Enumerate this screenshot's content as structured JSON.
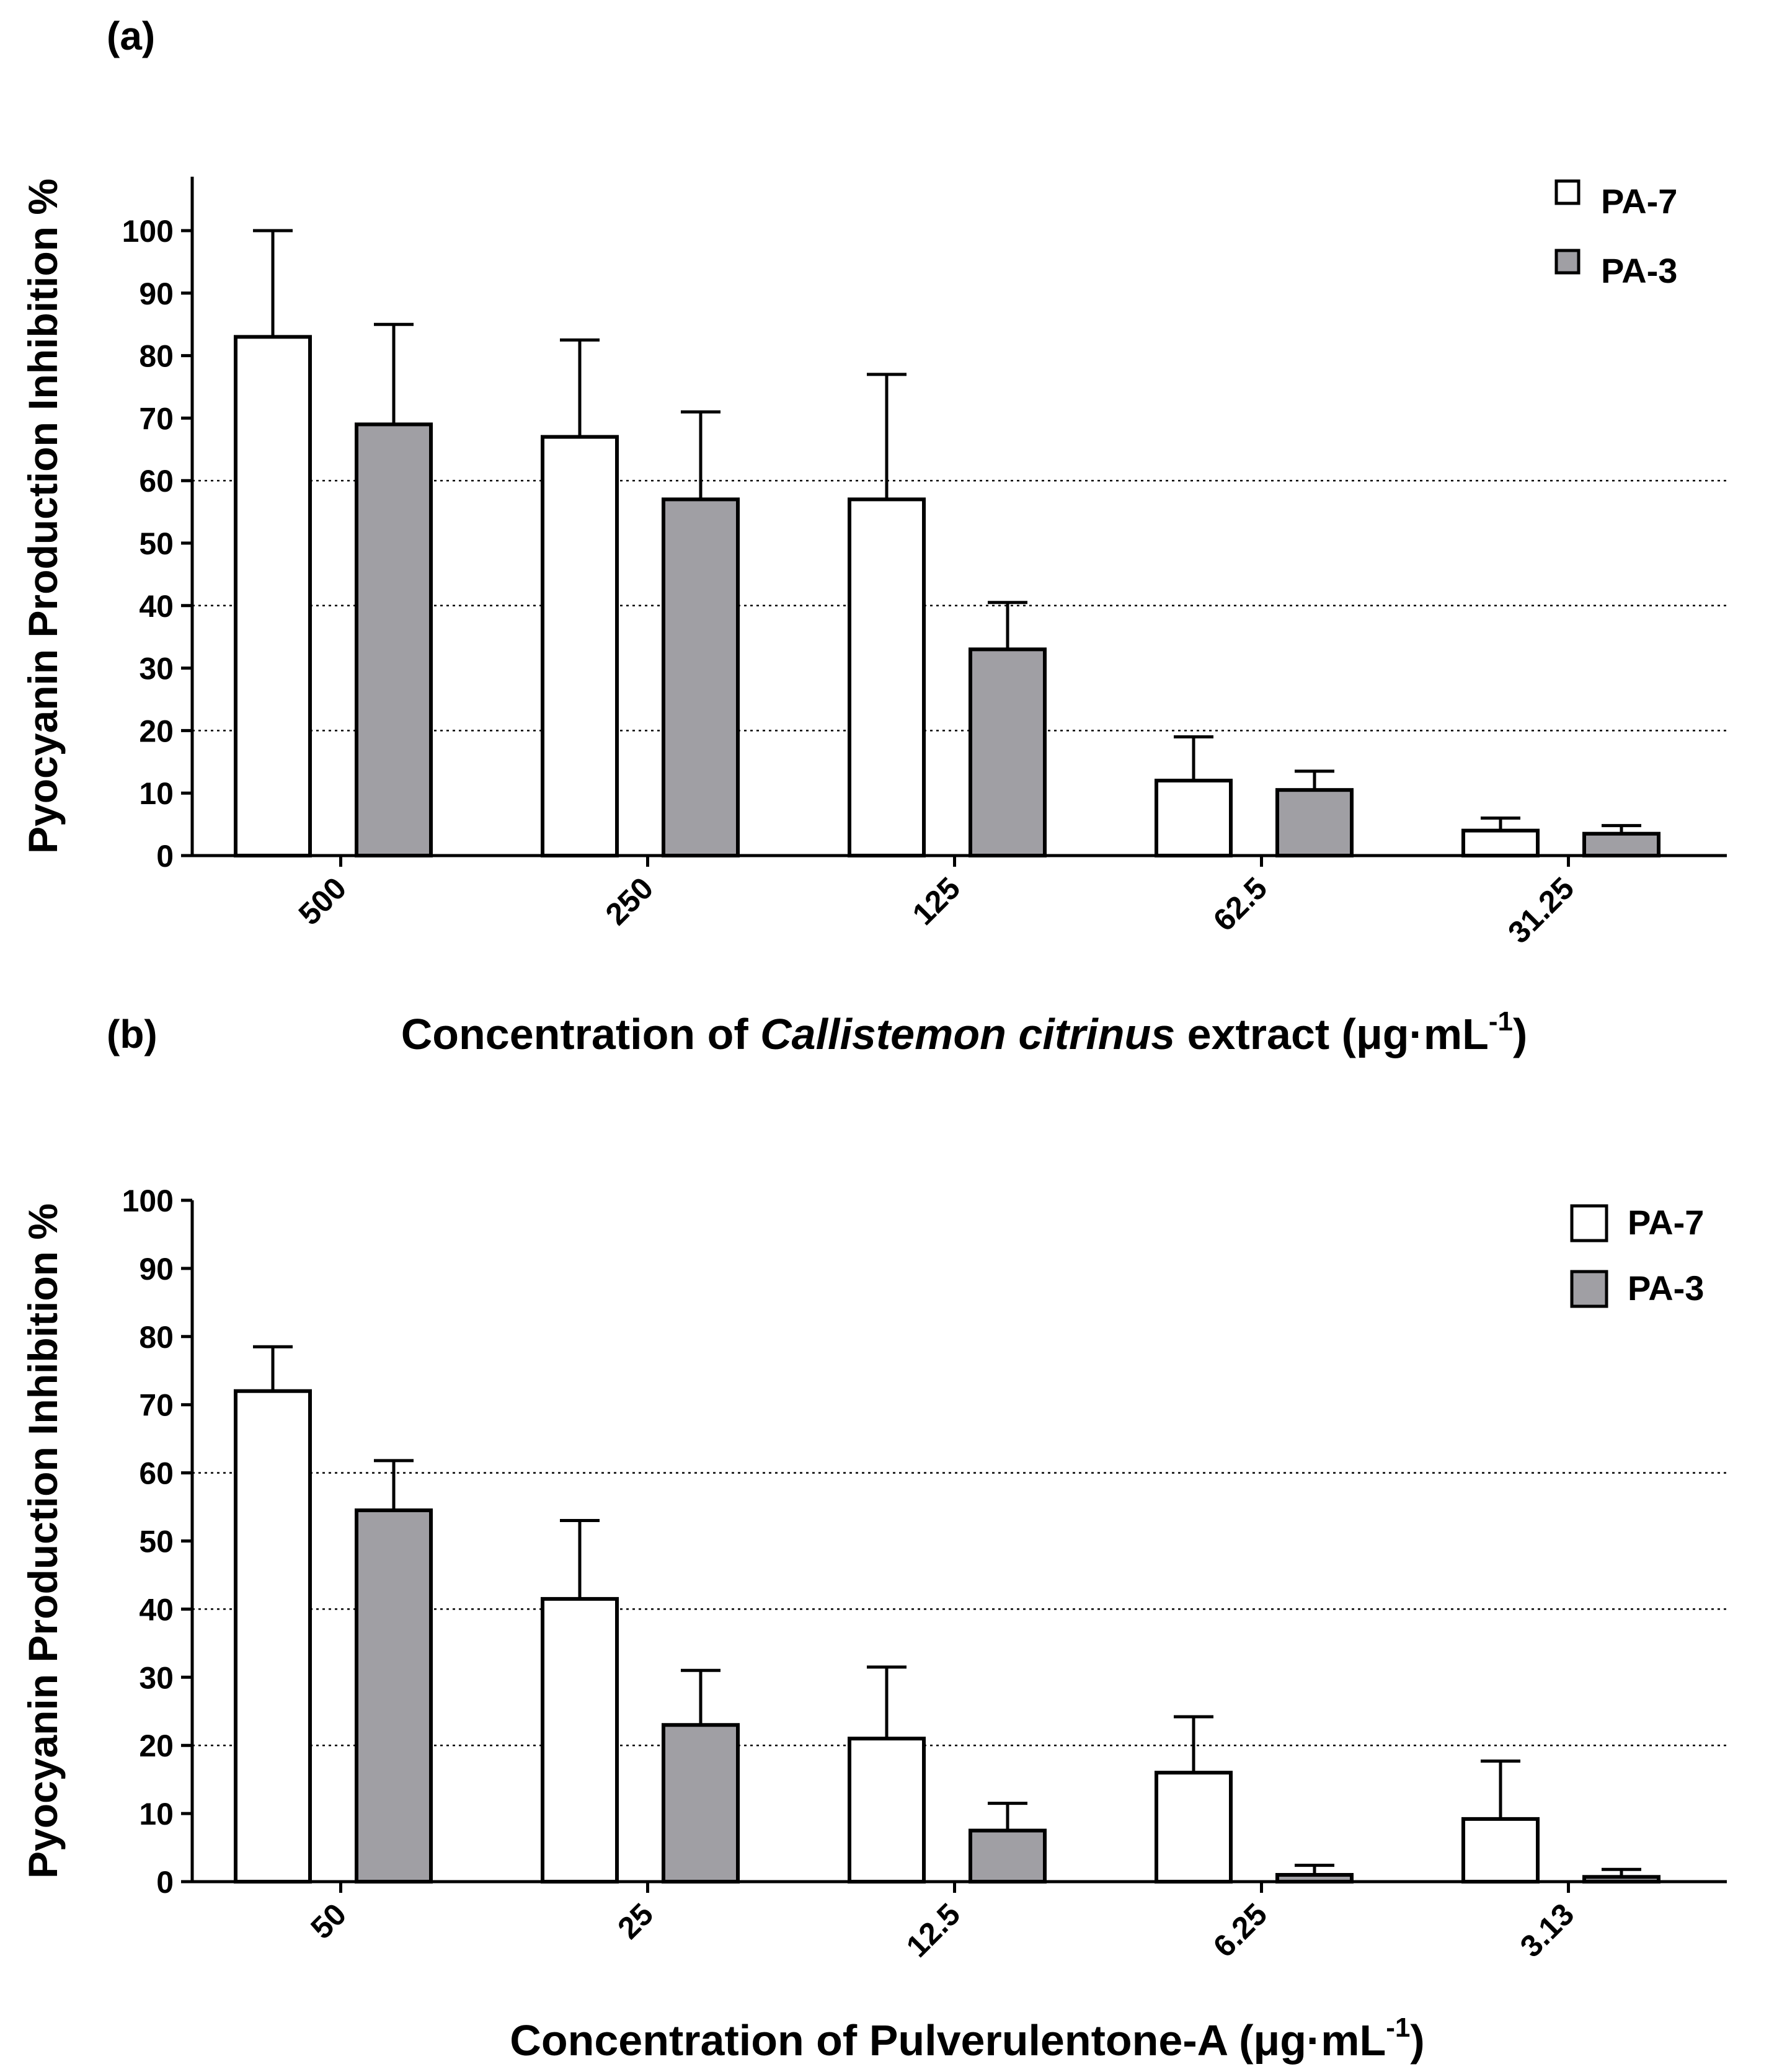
{
  "chart_data": [
    {
      "panel": "(a)",
      "type": "bar",
      "ylabel": "Pyocyanin Production  Inhibition %",
      "xlabel_parts": [
        {
          "text": "Concentration of ",
          "italic": false
        },
        {
          "text": "Callistemon citrinus",
          "italic": true
        },
        {
          "text": " extract  (μg·mL",
          "italic": false
        }
      ],
      "xlabel_sup": "-1",
      "xlabel_end": ")",
      "categories": [
        "500",
        "250",
        "125",
        "62.5",
        "31.25"
      ],
      "ylim": [
        0,
        110
      ],
      "yticks": [
        0,
        10,
        20,
        30,
        40,
        50,
        60,
        70,
        80,
        90,
        100
      ],
      "gridlines": [
        20,
        40,
        60
      ],
      "series": [
        {
          "name": "PA-7",
          "color": "#ffffff",
          "values": [
            83,
            67,
            57,
            12,
            4
          ],
          "errors": [
            17,
            15.5,
            20,
            7,
            2
          ]
        },
        {
          "name": "PA-3",
          "color": "#a09fa4",
          "values": [
            69,
            57,
            33,
            10.5,
            3.5
          ],
          "errors": [
            16,
            14,
            7.5,
            3,
            1.3
          ]
        }
      ],
      "legend_position": "top-right"
    },
    {
      "panel": "(b)",
      "type": "bar",
      "ylabel": "Pyocyanin Production  Inhibition %",
      "xlabel_parts": [
        {
          "text": "Concentration of Pulverulentone-A  (μg·mL",
          "italic": false
        }
      ],
      "xlabel_sup": "-1",
      "xlabel_end": ")",
      "categories": [
        "50",
        "25",
        "12.5",
        "6.25",
        "3.13"
      ],
      "ylim": [
        0,
        100
      ],
      "yticks": [
        0,
        10,
        20,
        30,
        40,
        50,
        60,
        70,
        80,
        90,
        100
      ],
      "gridlines": [
        20,
        40,
        60
      ],
      "series": [
        {
          "name": "PA-7",
          "color": "#ffffff",
          "values": [
            72,
            41.5,
            21,
            16,
            9.2
          ],
          "errors": [
            6.5,
            11.5,
            10.5,
            8.2,
            8.5
          ]
        },
        {
          "name": "PA-3",
          "color": "#a09fa4",
          "values": [
            54.5,
            23,
            7.5,
            1,
            0.7
          ],
          "errors": [
            7.3,
            8,
            4,
            1.4,
            1.1
          ]
        }
      ],
      "legend_position": "top-right"
    }
  ]
}
